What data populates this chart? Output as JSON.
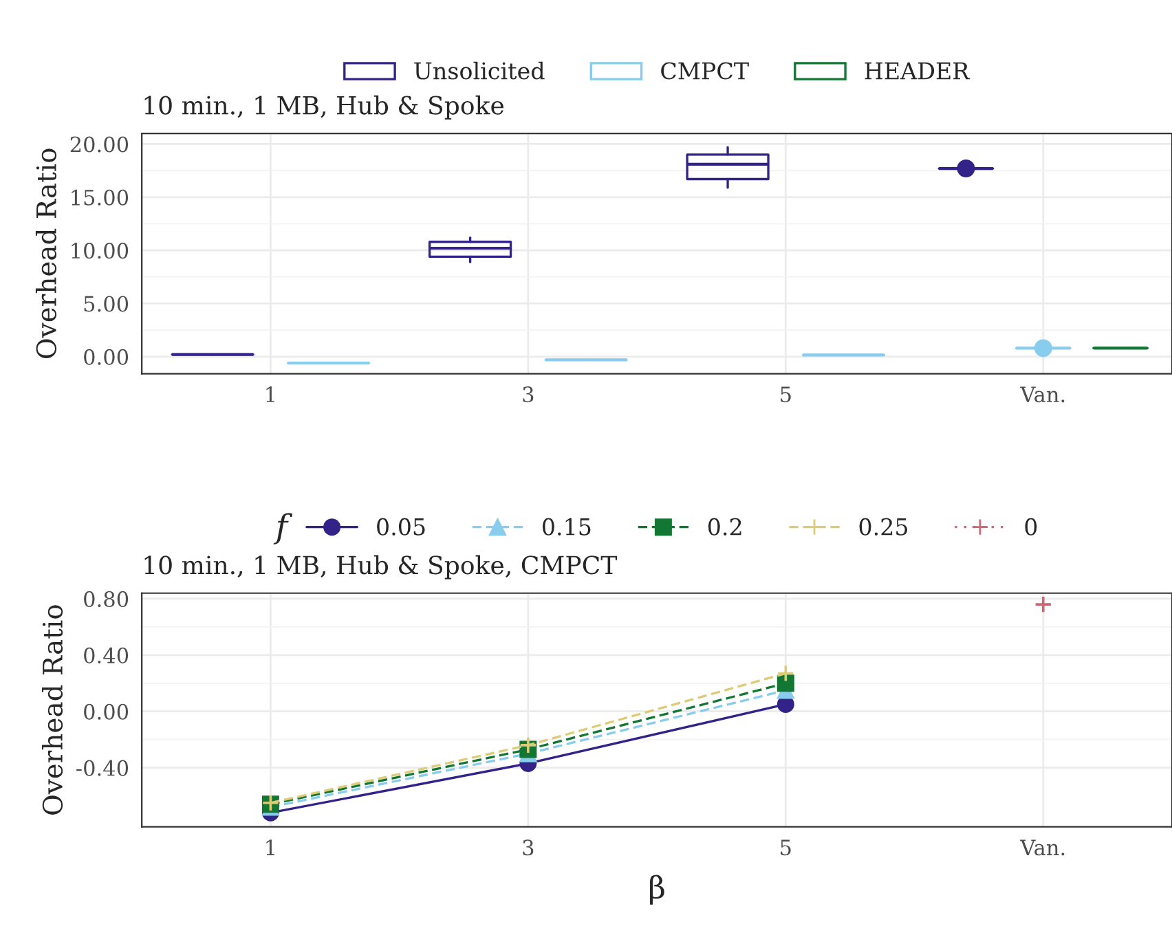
{
  "chart_data": [
    {
      "type": "box",
      "title": "10 min., 1 MB, Hub & Spoke",
      "ylabel": "Overhead Ratio",
      "categories": [
        "1",
        "3",
        "5",
        "Van."
      ],
      "series": [
        {
          "name": "Unsolicited",
          "color": "#332288",
          "boxes": [
            {
              "low": 0.2,
              "q1": 0.2,
              "median": 0.2,
              "q3": 0.2,
              "high": 0.2
            },
            {
              "low": 8.9,
              "q1": 9.4,
              "median": 10.2,
              "q3": 10.8,
              "high": 11.2
            },
            {
              "low": 15.9,
              "q1": 16.7,
              "median": 18.1,
              "q3": 19.0,
              "high": 19.7
            },
            {
              "low": 17.7,
              "q1": 17.7,
              "median": 17.7,
              "q3": 17.7,
              "high": 17.7,
              "mean": 17.7
            }
          ]
        },
        {
          "name": "CMPCT",
          "color": "#88ccee",
          "boxes": [
            {
              "low": -0.6,
              "q1": -0.6,
              "median": -0.6,
              "q3": -0.6,
              "high": -0.6
            },
            {
              "low": -0.3,
              "q1": -0.3,
              "median": -0.3,
              "q3": -0.3,
              "high": -0.3
            },
            {
              "low": 0.15,
              "q1": 0.15,
              "median": 0.15,
              "q3": 0.15,
              "high": 0.15
            },
            {
              "low": 0.8,
              "q1": 0.8,
              "median": 0.8,
              "q3": 0.8,
              "high": 0.8,
              "mean": 0.8
            }
          ]
        },
        {
          "name": "HEADER",
          "color": "#117733",
          "boxes": [
            null,
            null,
            null,
            {
              "low": 0.8,
              "q1": 0.8,
              "median": 0.8,
              "q3": 0.8,
              "high": 0.8
            }
          ]
        }
      ],
      "ylim": [
        -1.6,
        21
      ],
      "yticks": [
        {
          "value": 0,
          "label": "0.00"
        },
        {
          "value": 5,
          "label": "5.00"
        },
        {
          "value": 10,
          "label": "10.00"
        },
        {
          "value": 15,
          "label": "15.00"
        },
        {
          "value": 20,
          "label": "20.00"
        }
      ],
      "grid": true,
      "legend": "top"
    },
    {
      "type": "line",
      "title": "10 min., 1 MB, Hub & Spoke, CMPCT",
      "ylabel": "Overhead Ratio",
      "xlabel": "β",
      "legend_title": "f",
      "categories": [
        "1",
        "3",
        "5",
        "Van."
      ],
      "series": [
        {
          "name": "0.05",
          "color": "#332288",
          "marker": "circle",
          "line_style": "solid",
          "values": [
            -0.72,
            -0.37,
            0.05,
            null
          ]
        },
        {
          "name": "0.15",
          "color": "#88ccee",
          "marker": "triangle",
          "line_style": "dashed",
          "values": [
            -0.68,
            -0.3,
            0.15,
            null
          ]
        },
        {
          "name": "0.2",
          "color": "#117733",
          "marker": "square",
          "line_style": "dashed",
          "values": [
            -0.66,
            -0.27,
            0.2,
            null
          ]
        },
        {
          "name": "0.25",
          "color": "#ddcc77",
          "marker": "cross",
          "line_style": "dashed",
          "values": [
            -0.65,
            -0.24,
            0.27,
            null
          ]
        },
        {
          "name": "0",
          "color": "#cc6677",
          "marker": "cross",
          "line_style": "dotted",
          "values": [
            null,
            null,
            null,
            0.76
          ]
        }
      ],
      "ylim": [
        -0.82,
        0.84
      ],
      "yticks": [
        {
          "value": -0.4,
          "label": "-0.40"
        },
        {
          "value": 0,
          "label": "0.00"
        },
        {
          "value": 0.4,
          "label": "0.40"
        },
        {
          "value": 0.8,
          "label": "0.80"
        }
      ],
      "grid": true,
      "legend": "top"
    }
  ]
}
